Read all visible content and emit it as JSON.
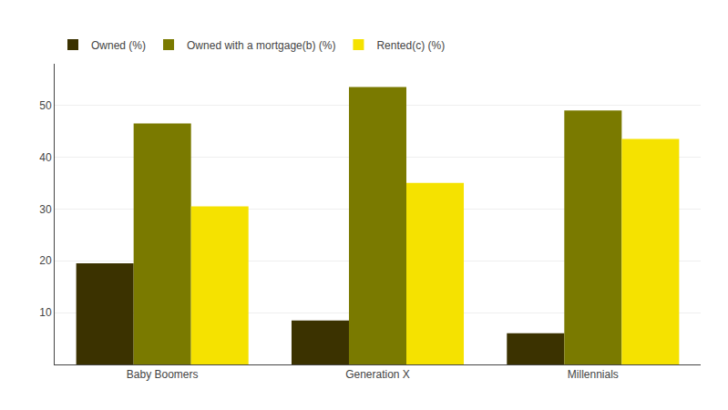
{
  "chart_data": {
    "type": "bar",
    "categories": [
      "Baby Boomers",
      "Generation X",
      "Millennials"
    ],
    "series": [
      {
        "name": "Owned (%)",
        "color": "#3b3200",
        "values": [
          19.5,
          8.5,
          6.0
        ]
      },
      {
        "name": "Owned with a mortgage(b) (%)",
        "color": "#7a7a00",
        "values": [
          46.5,
          53.5,
          49.0
        ]
      },
      {
        "name": "Rented(c) (%)",
        "color": "#f5e200",
        "values": [
          30.5,
          35.0,
          43.5
        ]
      }
    ],
    "ylim": [
      0,
      58
    ],
    "yticks": [
      10,
      20,
      30,
      40,
      50
    ],
    "grid": true,
    "legend": "upper left"
  }
}
